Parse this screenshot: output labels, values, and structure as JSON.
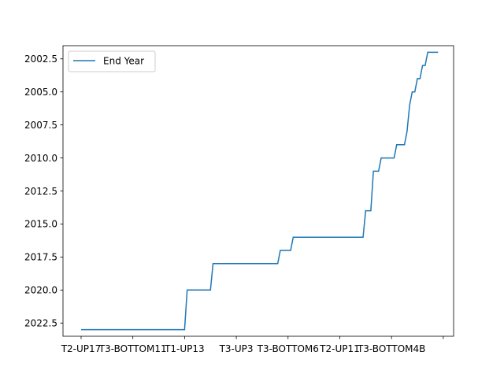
{
  "chart_data": {
    "type": "line",
    "title": "",
    "xlabel": "",
    "ylabel": "",
    "y_inverted": true,
    "ylim": [
      2023.5,
      2001.5
    ],
    "yticks": [
      "2002.5",
      "2005.0",
      "2007.5",
      "2010.0",
      "2012.5",
      "2015.0",
      "2017.5",
      "2020.0",
      "2022.5"
    ],
    "ytick_values": [
      2002.5,
      2005.0,
      2007.5,
      2010.0,
      2012.5,
      2015.0,
      2017.5,
      2020.0,
      2022.5
    ],
    "xticks": [
      "T2-UP17",
      "T3-BOTTOM11",
      "T1-UP13",
      "T3-UP3",
      "T3-BOTTOM6",
      "T2-UP11",
      "T3-BOTTOM4B",
      ""
    ],
    "xtick_positions": [
      0,
      20,
      40,
      60,
      80,
      100,
      120,
      140
    ],
    "xlim": [
      -7,
      144
    ],
    "legend": {
      "location": "upper left",
      "entries": [
        "End Year"
      ]
    },
    "grid": false,
    "color": "#1f77b4",
    "series": [
      {
        "name": "End Year",
        "x": [
          0,
          40,
          41,
          50,
          51,
          76,
          77,
          81,
          82,
          109,
          110,
          112,
          113,
          115,
          116,
          121,
          122,
          125,
          126,
          127,
          128,
          129,
          130,
          131,
          132,
          133,
          134,
          138
        ],
        "y": [
          2023,
          2023,
          2020,
          2020,
          2018,
          2018,
          2017,
          2017,
          2016,
          2016,
          2014,
          2014,
          2011,
          2011,
          2010,
          2010,
          2009,
          2009,
          2008,
          2006,
          2005,
          2005,
          2004,
          2004,
          2003,
          2003,
          2002,
          2002
        ]
      }
    ]
  }
}
